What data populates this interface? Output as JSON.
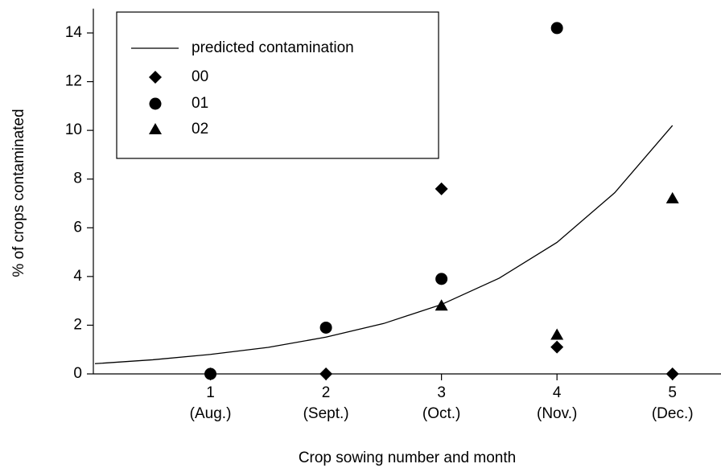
{
  "chart_data": {
    "type": "scatter",
    "xlabel": "Crop sowing number and month",
    "ylabel": "% of crops contaminated",
    "xlim": [
      0,
      5.42
    ],
    "ylim": [
      0,
      15
    ],
    "xticks": [
      1,
      2,
      3,
      4,
      5
    ],
    "xtick_sublabels": [
      "(Aug.)",
      "(Sept.)",
      "(Oct.)",
      "(Nov.)",
      "(Dec.)"
    ],
    "yticks": [
      0,
      2,
      4,
      6,
      8,
      10,
      12,
      14
    ],
    "legend": "upper left",
    "series": [
      {
        "name": "predicted contamination",
        "marker": "line",
        "color": "#000000",
        "x": [
          0,
          0.5,
          1,
          1.5,
          2,
          2.5,
          3,
          3.5,
          4,
          4.5,
          5
        ],
        "values": [
          0.42,
          0.58,
          0.8,
          1.09,
          1.51,
          2.07,
          2.85,
          3.93,
          5.4,
          7.44,
          10.2
        ]
      },
      {
        "name": "00",
        "marker": "diamond",
        "color": "#000000",
        "x": [
          1,
          2,
          3,
          4,
          5
        ],
        "values": [
          0,
          0,
          7.6,
          1.1,
          0
        ]
      },
      {
        "name": "01",
        "marker": "circle",
        "color": "#000000",
        "x": [
          1,
          2,
          3,
          4
        ],
        "values": [
          0,
          1.9,
          3.9,
          14.2
        ]
      },
      {
        "name": "02",
        "marker": "triangle",
        "color": "#000000",
        "x": [
          3,
          4,
          5
        ],
        "values": [
          2.8,
          1.6,
          7.2
        ]
      }
    ]
  }
}
